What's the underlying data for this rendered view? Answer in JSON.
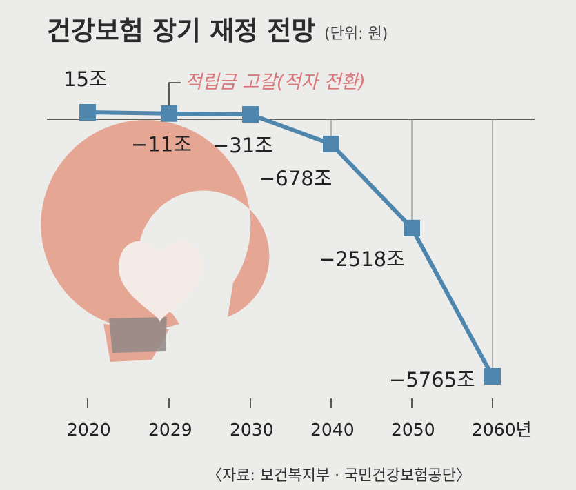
{
  "title": "건강보험 장기 재정 전망",
  "unit": "(단위: 원)",
  "annotation": "적립금 고갈(적자 전환)",
  "source": "〈자료: 보건복지부 · 국민건강보험공단〉",
  "colors": {
    "line": "#4e86ad",
    "annotation": "#d9777b",
    "logo": "#e6a694"
  },
  "chart_data": {
    "type": "line",
    "categories": [
      "2020",
      "2029",
      "2030",
      "2040",
      "2050",
      "2060년"
    ],
    "values": [
      15,
      -11,
      -31,
      -678,
      -2518,
      -5765
    ],
    "data_labels": [
      "15조",
      "−11조",
      "−31조",
      "−678조",
      "−2518조",
      "−5765조"
    ],
    "title": "건강보험 장기 재정 전망",
    "xlabel": "",
    "ylabel": "",
    "ylim": [
      -5765,
      15
    ],
    "grid": "vertical"
  }
}
